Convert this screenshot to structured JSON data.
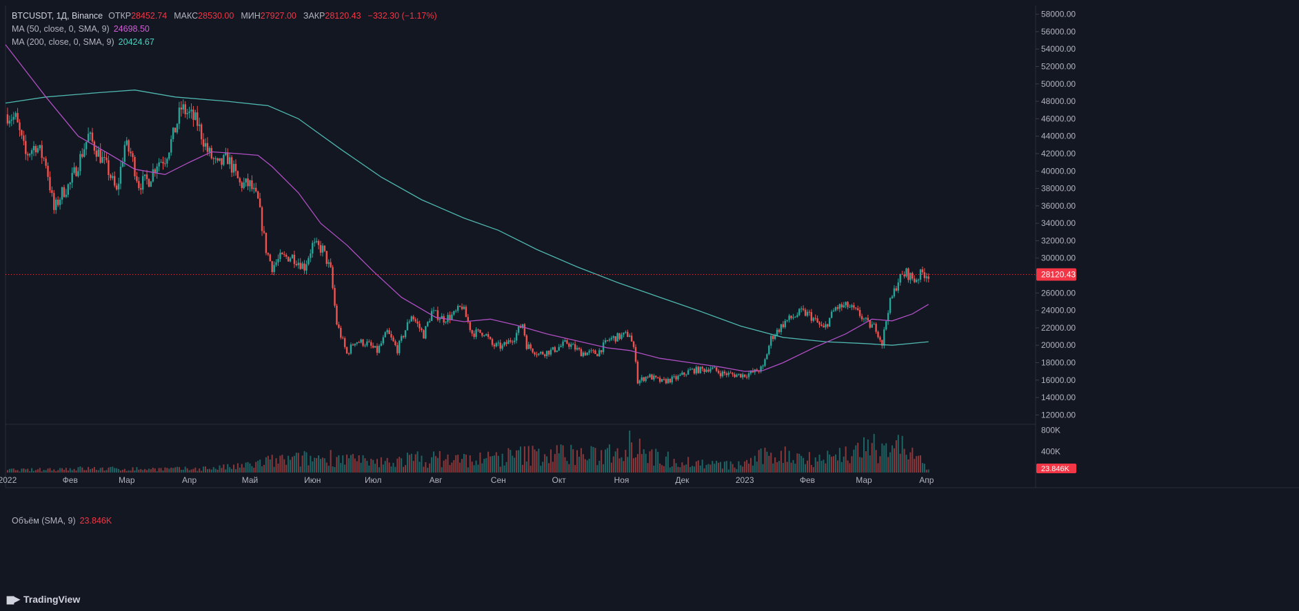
{
  "legend": {
    "symbol": "BTCUSDT, 1Д, Binance",
    "open_label": "ОТКР",
    "open": "28452.74",
    "high_label": "МАКС",
    "high": "28530.00",
    "low_label": "МИН",
    "low": "27927.00",
    "close_label": "ЗАКР",
    "close": "28120.43",
    "change": "−332.30 (−1.17%)",
    "ma50_label": "MA (50, close, 0, SMA, 9)",
    "ma50_value": "24698.50",
    "ma200_label": "MA (200, close, 0, SMA, 9)",
    "ma200_value": "20424.67"
  },
  "volume_legend": {
    "label": "Объём (SMA, 9)",
    "value": "23.846K"
  },
  "price_tag": "28120.43",
  "volume_tag": "23.846K",
  "logo_text": "TradingView",
  "colors": {
    "background": "#131722",
    "up": "#26a69a",
    "down": "#ef5350",
    "ma50": "#b04fc4",
    "ma200": "#4fb8b0",
    "grid": "#1e222d",
    "axis_text": "#b2b5be"
  },
  "chart_data": {
    "type": "candlestick",
    "symbol": "BTCUSDT",
    "interval": "1Д",
    "exchange": "Binance",
    "y_axis": {
      "ticks": [
        12000,
        14000,
        16000,
        18000,
        20000,
        22000,
        24000,
        26000,
        28000,
        30000,
        32000,
        34000,
        36000,
        38000,
        40000,
        42000,
        44000,
        46000,
        48000,
        50000,
        52000,
        54000,
        56000,
        58000
      ],
      "tick_labels": [
        "12000.00",
        "14000.00",
        "16000.00",
        "18000.00",
        "20000.00",
        "22000.00",
        "24000.00",
        "26000.00",
        "28000.00",
        "30000.00",
        "32000.00",
        "34000.00",
        "36000.00",
        "38000.00",
        "40000.00",
        "42000.00",
        "44000.00",
        "46000.00",
        "48000.00",
        "50000.00",
        "52000.00",
        "54000.00",
        "56000.00",
        "58000.00"
      ],
      "range": [
        11000,
        59000
      ]
    },
    "x_axis": {
      "labels": [
        "2022",
        "Фев",
        "Мар",
        "Апр",
        "Май",
        "Июн",
        "Июл",
        "Авг",
        "Сен",
        "Окт",
        "Ноя",
        "Дек",
        "2023",
        "Фев",
        "Мар",
        "Апр"
      ],
      "dates": [
        "2022-01-01",
        "2022-02-01",
        "2022-03-01",
        "2022-04-01",
        "2022-05-01",
        "2022-06-01",
        "2022-07-01",
        "2022-08-01",
        "2022-09-01",
        "2022-10-01",
        "2022-11-01",
        "2022-12-01",
        "2023-01-01",
        "2023-02-01",
        "2023-03-01",
        "2023-04-01"
      ],
      "range": [
        "2021-12-31",
        "2023-05-25"
      ]
    },
    "current_price": 28120.43,
    "price_points": [
      [
        "2022-01-01",
        46500
      ],
      [
        "2022-01-05",
        46000
      ],
      [
        "2022-01-10",
        41800
      ],
      [
        "2022-01-15",
        43000
      ],
      [
        "2022-01-20",
        41000
      ],
      [
        "2022-01-24",
        35500
      ],
      [
        "2022-01-28",
        37500
      ],
      [
        "2022-02-01",
        38500
      ],
      [
        "2022-02-06",
        41500
      ],
      [
        "2022-02-10",
        44000
      ],
      [
        "2022-02-14",
        42500
      ],
      [
        "2022-02-20",
        40000
      ],
      [
        "2022-02-24",
        37500
      ],
      [
        "2022-02-28",
        43000
      ],
      [
        "2022-03-03",
        42000
      ],
      [
        "2022-03-07",
        38500
      ],
      [
        "2022-03-12",
        39000
      ],
      [
        "2022-03-16",
        41000
      ],
      [
        "2022-03-20",
        41500
      ],
      [
        "2022-03-24",
        44000
      ],
      [
        "2022-03-28",
        47200
      ],
      [
        "2022-04-01",
        46500
      ],
      [
        "2022-04-05",
        45500
      ],
      [
        "2022-04-10",
        42300
      ],
      [
        "2022-04-15",
        40500
      ],
      [
        "2022-04-20",
        41500
      ],
      [
        "2022-04-26",
        38500
      ],
      [
        "2022-05-01",
        38400
      ],
      [
        "2022-05-05",
        36500
      ],
      [
        "2022-05-09",
        31000
      ],
      [
        "2022-05-12",
        29000
      ],
      [
        "2022-05-16",
        30000
      ],
      [
        "2022-05-22",
        30200
      ],
      [
        "2022-05-28",
        29000
      ],
      [
        "2022-06-01",
        31500
      ],
      [
        "2022-06-06",
        31000
      ],
      [
        "2022-06-10",
        28500
      ],
      [
        "2022-06-13",
        22500
      ],
      [
        "2022-06-18",
        19000
      ],
      [
        "2022-06-22",
        20500
      ],
      [
        "2022-06-28",
        20200
      ],
      [
        "2022-07-03",
        19300
      ],
      [
        "2022-07-08",
        21500
      ],
      [
        "2022-07-13",
        19500
      ],
      [
        "2022-07-20",
        23500
      ],
      [
        "2022-07-26",
        21200
      ],
      [
        "2022-07-30",
        23800
      ],
      [
        "2022-08-05",
        23000
      ],
      [
        "2022-08-10",
        23500
      ],
      [
        "2022-08-14",
        24500
      ],
      [
        "2022-08-19",
        21400
      ],
      [
        "2022-08-25",
        21500
      ],
      [
        "2022-08-29",
        20000
      ],
      [
        "2022-09-03",
        19800
      ],
      [
        "2022-09-09",
        21000
      ],
      [
        "2022-09-13",
        22500
      ],
      [
        "2022-09-15",
        20000
      ],
      [
        "2022-09-21",
        19000
      ],
      [
        "2022-09-28",
        19400
      ],
      [
        "2022-10-05",
        20300
      ],
      [
        "2022-10-12",
        19150
      ],
      [
        "2022-10-20",
        19100
      ],
      [
        "2022-10-26",
        20700
      ],
      [
        "2022-11-05",
        21300
      ],
      [
        "2022-11-08",
        18500
      ],
      [
        "2022-11-09",
        15800
      ],
      [
        "2022-11-14",
        16500
      ],
      [
        "2022-11-21",
        15800
      ],
      [
        "2022-11-28",
        16200
      ],
      [
        "2022-12-05",
        17100
      ],
      [
        "2022-12-12",
        17200
      ],
      [
        "2022-12-15",
        17400
      ],
      [
        "2022-12-20",
        16800
      ],
      [
        "2022-12-27",
        16600
      ],
      [
        "2023-01-01",
        16600
      ],
      [
        "2023-01-06",
        16950
      ],
      [
        "2023-01-10",
        17400
      ],
      [
        "2023-01-14",
        20800
      ],
      [
        "2023-01-21",
        22700
      ],
      [
        "2023-01-29",
        23800
      ],
      [
        "2023-02-02",
        23500
      ],
      [
        "2023-02-09",
        21800
      ],
      [
        "2023-02-15",
        24300
      ],
      [
        "2023-02-21",
        24500
      ],
      [
        "2023-02-27",
        23500
      ],
      [
        "2023-03-03",
        22400
      ],
      [
        "2023-03-07",
        22000
      ],
      [
        "2023-03-10",
        20200
      ],
      [
        "2023-03-13",
        24200
      ],
      [
        "2023-03-18",
        27500
      ],
      [
        "2023-03-22",
        28300
      ],
      [
        "2023-03-26",
        27500
      ],
      [
        "2023-03-30",
        28300
      ],
      [
        "2023-04-02",
        28120
      ]
    ],
    "ma50_points": [
      [
        "2021-12-31",
        54500
      ],
      [
        "2022-01-20",
        48500
      ],
      [
        "2022-02-05",
        44000
      ],
      [
        "2022-02-20",
        42000
      ],
      [
        "2022-03-05",
        40200
      ],
      [
        "2022-03-20",
        39600
      ],
      [
        "2022-04-01",
        41000
      ],
      [
        "2022-04-12",
        42200
      ],
      [
        "2022-04-25",
        42000
      ],
      [
        "2022-05-05",
        41800
      ],
      [
        "2022-05-12",
        40500
      ],
      [
        "2022-05-25",
        37500
      ],
      [
        "2022-06-05",
        34000
      ],
      [
        "2022-06-18",
        31500
      ],
      [
        "2022-07-01",
        28500
      ],
      [
        "2022-07-15",
        25500
      ],
      [
        "2022-08-01",
        23200
      ],
      [
        "2022-08-15",
        22700
      ],
      [
        "2022-08-28",
        23000
      ],
      [
        "2022-09-10",
        22300
      ],
      [
        "2022-09-25",
        21300
      ],
      [
        "2022-10-10",
        20500
      ],
      [
        "2022-10-25",
        19700
      ],
      [
        "2022-11-05",
        19400
      ],
      [
        "2022-11-20",
        18500
      ],
      [
        "2022-12-05",
        18000
      ],
      [
        "2022-12-20",
        17500
      ],
      [
        "2023-01-01",
        17000
      ],
      [
        "2023-01-10",
        17100
      ],
      [
        "2023-01-20",
        18000
      ],
      [
        "2023-02-05",
        19800
      ],
      [
        "2023-02-20",
        21300
      ],
      [
        "2023-03-05",
        23000
      ],
      [
        "2023-03-15",
        22800
      ],
      [
        "2023-03-25",
        23600
      ],
      [
        "2023-04-02",
        24700
      ]
    ],
    "ma200_points": [
      [
        "2021-12-31",
        47800
      ],
      [
        "2022-01-20",
        48500
      ],
      [
        "2022-02-15",
        49000
      ],
      [
        "2022-03-05",
        49300
      ],
      [
        "2022-03-25",
        48500
      ],
      [
        "2022-04-20",
        48000
      ],
      [
        "2022-05-10",
        47500
      ],
      [
        "2022-05-25",
        46000
      ],
      [
        "2022-06-15",
        42500
      ],
      [
        "2022-07-05",
        39300
      ],
      [
        "2022-07-25",
        36700
      ],
      [
        "2022-08-15",
        34600
      ],
      [
        "2022-09-01",
        33200
      ],
      [
        "2022-09-20",
        31000
      ],
      [
        "2022-10-10",
        29000
      ],
      [
        "2022-10-30",
        27200
      ],
      [
        "2022-11-20",
        25500
      ],
      [
        "2022-12-10",
        23900
      ],
      [
        "2022-12-30",
        22200
      ],
      [
        "2023-01-20",
        20900
      ],
      [
        "2023-02-10",
        20400
      ],
      [
        "2023-03-01",
        20200
      ],
      [
        "2023-03-15",
        20000
      ],
      [
        "2023-04-02",
        20400
      ]
    ],
    "volume_axis": {
      "tick_labels": [
        "800K",
        "400K"
      ],
      "ticks": [
        800000,
        400000
      ]
    },
    "volume_points": [
      [
        "2022-01-15",
        60000
      ],
      [
        "2022-02-01",
        90000
      ],
      [
        "2022-03-01",
        80000
      ],
      [
        "2022-04-01",
        80000
      ],
      [
        "2022-04-26",
        130000
      ],
      [
        "2022-05-11",
        250000
      ],
      [
        "2022-06-14",
        350000
      ],
      [
        "2022-06-30",
        200000
      ],
      [
        "2022-07-20",
        300000
      ],
      [
        "2022-08-03",
        300000
      ],
      [
        "2022-08-20",
        280000
      ],
      [
        "2022-09-13",
        380000
      ],
      [
        "2022-10-05",
        420000
      ],
      [
        "2022-10-20",
        350000
      ],
      [
        "2022-11-09",
        750000
      ],
      [
        "2022-11-15",
        350000
      ],
      [
        "2022-12-10",
        200000
      ],
      [
        "2022-12-28",
        150000
      ],
      [
        "2023-01-14",
        400000
      ],
      [
        "2023-02-10",
        320000
      ],
      [
        "2023-02-22",
        450000
      ],
      [
        "2023-03-10",
        550000
      ],
      [
        "2023-03-15",
        680000
      ],
      [
        "2023-03-24",
        450000
      ],
      [
        "2023-04-02",
        60000
      ]
    ]
  }
}
